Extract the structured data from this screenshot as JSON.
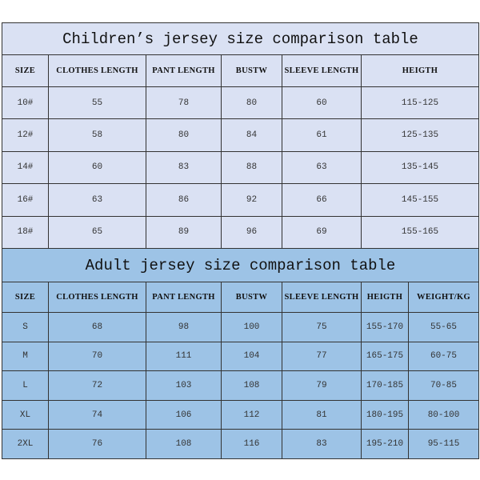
{
  "children": {
    "title": "Children’s jersey size comparison table",
    "headers": [
      "SIZE",
      "CLOTHES LENGTH",
      "PANT LENGTH",
      "BUSTW",
      "SLEEVE LENGTH",
      "HEIGTH"
    ],
    "rows": [
      [
        "10#",
        "55",
        "78",
        "80",
        "60",
        "115-125"
      ],
      [
        "12#",
        "58",
        "80",
        "84",
        "61",
        "125-135"
      ],
      [
        "14#",
        "60",
        "83",
        "88",
        "63",
        "135-145"
      ],
      [
        "16#",
        "63",
        "86",
        "92",
        "66",
        "145-155"
      ],
      [
        "18#",
        "65",
        "89",
        "96",
        "69",
        "155-165"
      ]
    ]
  },
  "adult": {
    "title": "Adult jersey size comparison table",
    "headers": [
      "SIZE",
      "CLOTHES LENGTH",
      "PANT LENGTH",
      "BUSTW",
      "SLEEVE LENGTH",
      "HEIGTH",
      "WEIGHT/KG"
    ],
    "rows": [
      [
        "S",
        "68",
        "98",
        "100",
        "75",
        "155-170",
        "55-65"
      ],
      [
        "M",
        "70",
        "111",
        "104",
        "77",
        "165-175",
        "60-75"
      ],
      [
        "L",
        "72",
        "103",
        "108",
        "79",
        "170-185",
        "70-85"
      ],
      [
        "XL",
        "74",
        "106",
        "112",
        "81",
        "180-195",
        "80-100"
      ],
      [
        "2XL",
        "76",
        "108",
        "116",
        "83",
        "195-210",
        "95-115"
      ]
    ]
  },
  "colors": {
    "children_bg": "#dae1f3",
    "adult_bg": "#9dc3e6",
    "border": "#333333"
  }
}
